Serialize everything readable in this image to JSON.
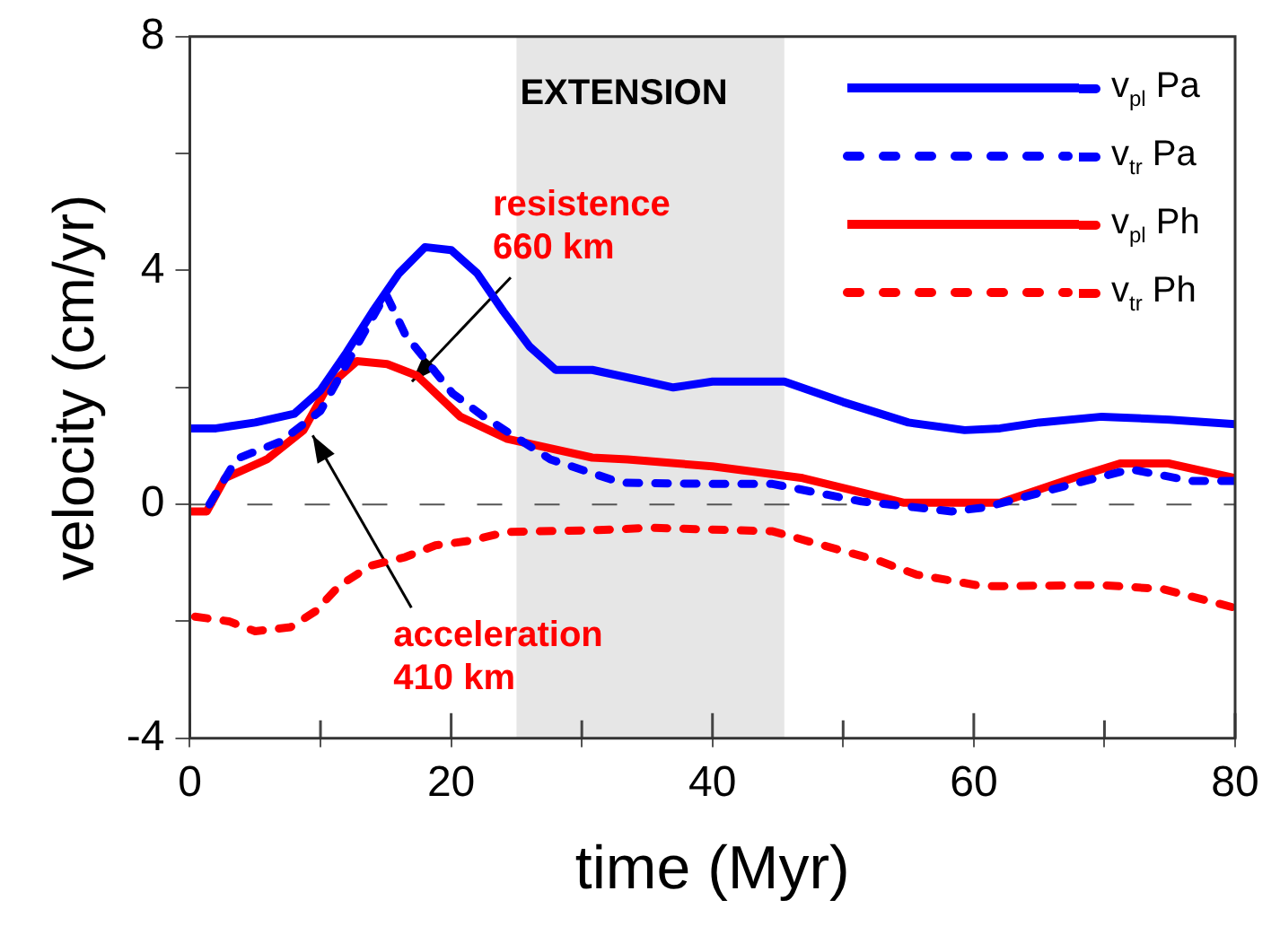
{
  "chart_data": {
    "type": "line",
    "xlabel": "time (Myr)",
    "ylabel": "velocity (cm/yr)",
    "xlim": [
      0,
      80
    ],
    "xticks": [
      0,
      {
        "value": 10,
        "label": null
      },
      20,
      {
        "value": 30,
        "label": null
      },
      40,
      {
        "value": 50,
        "label": null
      },
      60,
      {
        "value": 70,
        "label": null
      },
      80
    ],
    "ylim": [
      -4,
      8
    ],
    "yticks": [
      -4,
      {
        "value": -2,
        "label": null
      },
      0,
      {
        "value": 2,
        "label": null
      },
      4,
      {
        "value": 6,
        "label": null
      },
      8
    ],
    "grid": false,
    "legend": "top right",
    "marker": "none",
    "series": [
      {
        "name": "v$_{pl}$ Pa",
        "color": "#0000ff",
        "line_style": "solid",
        "x": [
          0,
          2,
          5,
          8,
          10,
          12,
          14,
          16,
          18,
          20,
          22,
          24,
          26,
          28,
          30.8,
          35,
          37,
          40,
          45.5,
          50,
          55,
          59.3,
          62,
          65,
          69.8,
          75,
          80
        ],
        "values": [
          1.3,
          1.3,
          1.4,
          1.55,
          1.95,
          2.6,
          3.3,
          3.95,
          4.4,
          4.35,
          3.95,
          3.3,
          2.7,
          2.3,
          2.3,
          2.1,
          2.0,
          2.1,
          2.1,
          1.75,
          1.4,
          1.27,
          1.3,
          1.4,
          1.5,
          1.45,
          1.37
        ]
      },
      {
        "name": "v$_{tr}$ Pa",
        "color": "#0000ff",
        "line_style": "dashed",
        "x": [
          1.5,
          3.6,
          7,
          10,
          13,
          15,
          16.5,
          20.1,
          22.5,
          27.6,
          33,
          40,
          44.6,
          51.4,
          58.3,
          60.9,
          67.6,
          72,
          76.7,
          80
        ],
        "values": [
          0,
          0.78,
          1.08,
          1.6,
          2.8,
          3.6,
          2.9,
          1.9,
          1.5,
          0.77,
          0.37,
          0.35,
          0.35,
          0.05,
          -0.12,
          -0.05,
          0.35,
          0.6,
          0.4,
          0.4
        ]
      },
      {
        "name": "v$_{pl}$ Ph",
        "color": "#ff0000",
        "line_style": "solid",
        "x": [
          0,
          1.3,
          2.7,
          5.9,
          8.7,
          10.5,
          12.8,
          15.1,
          17.4,
          20.7,
          24.3,
          30.8,
          33.5,
          40,
          46.9,
          54.6,
          62,
          67.6,
          71.2,
          74.9,
          80
        ],
        "values": [
          -0.12,
          -0.12,
          0.45,
          0.77,
          1.27,
          2.0,
          2.45,
          2.4,
          2.2,
          1.5,
          1.12,
          0.8,
          0.77,
          0.65,
          0.45,
          0.03,
          0.03,
          0.45,
          0.7,
          0.7,
          0.45
        ]
      },
      {
        "name": "v$_{tr}$ Ph",
        "color": "#ff0000",
        "line_style": "dashed",
        "x": [
          0.4,
          3,
          5,
          7.7,
          9.6,
          11.4,
          13.8,
          16.5,
          18.8,
          21.5,
          24.3,
          31.2,
          35.3,
          44.6,
          49.1,
          52.8,
          55.6,
          60.7,
          69.8,
          74.5,
          80
        ],
        "values": [
          -1.92,
          -2.0,
          -2.17,
          -2.1,
          -1.83,
          -1.4,
          -1.05,
          -0.9,
          -0.7,
          -0.62,
          -0.47,
          -0.44,
          -0.4,
          -0.46,
          -0.74,
          -0.97,
          -1.2,
          -1.4,
          -1.38,
          -1.45,
          -1.77
        ]
      }
    ],
    "bands": [
      {
        "axis": "x",
        "from": 25,
        "to": 45.5,
        "label": "EXTENSION",
        "color": "#e6e6e6"
      }
    ],
    "ref_lines": [
      {
        "axis": "y",
        "value": 0,
        "color": "#555555",
        "line_style": "dashed"
      }
    ],
    "annotations": [
      {
        "text": "resistence 660 km",
        "x": 17,
        "y": 2.1
      },
      {
        "text": "acceleration 410 km",
        "x": 9.4,
        "y": 1.18
      }
    ]
  }
}
